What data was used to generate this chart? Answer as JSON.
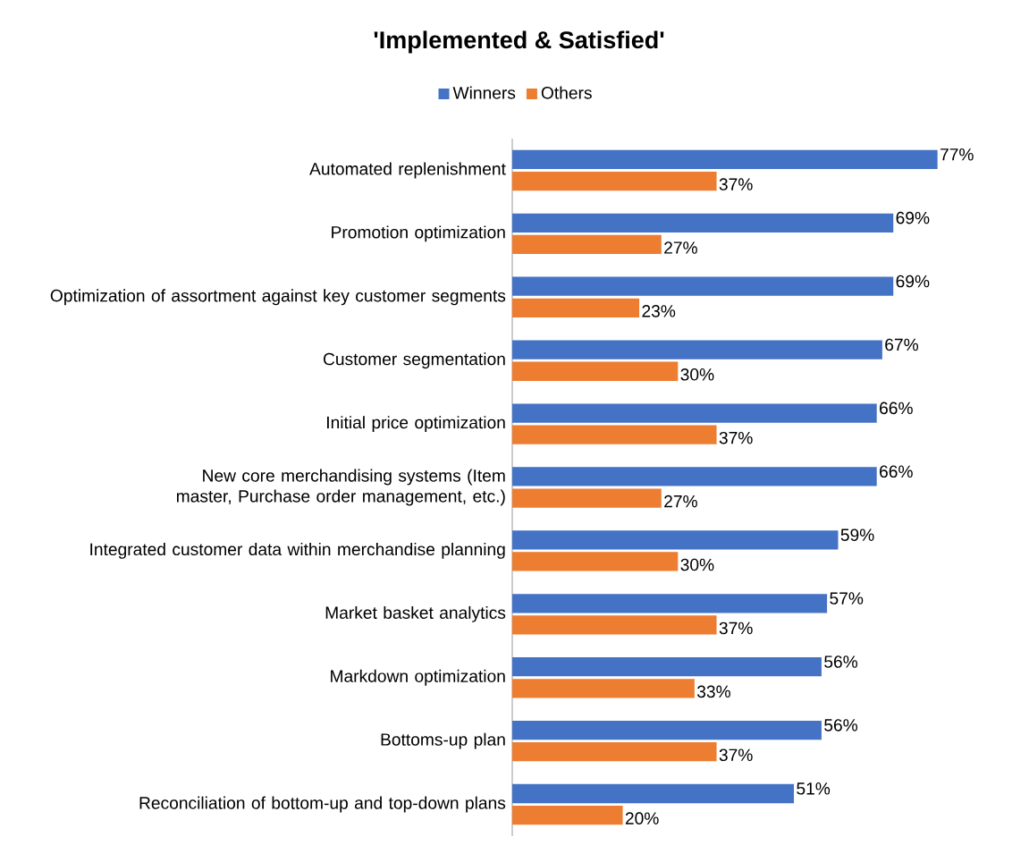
{
  "chart_data": {
    "type": "bar",
    "orientation": "horizontal",
    "title": "'Implemented & Satisfied'",
    "legend": "top",
    "categories": [
      "Automated replenishment",
      "Promotion optimization",
      "Optimization of assortment against key customer segments",
      "Customer segmentation",
      "Initial price optimization",
      "New core merchandising systems (Item master, Purchase order management, etc.)",
      "Integrated customer data within merchandise planning",
      "Market basket analytics",
      "Markdown optimization",
      "Bottoms-up plan",
      "Reconciliation of bottom-up and top-down plans"
    ],
    "series": [
      {
        "name": "Winners",
        "color": "#4472c4",
        "values": [
          77,
          69,
          69,
          67,
          66,
          66,
          59,
          57,
          56,
          56,
          51
        ],
        "value_labels": [
          "77%",
          "69%",
          "69%",
          "67%",
          "66%",
          "66%",
          "59%",
          "57%",
          "56%",
          "56%",
          "51%"
        ]
      },
      {
        "name": "Others",
        "color": "#ed7d31",
        "values": [
          37,
          27,
          23,
          30,
          37,
          27,
          30,
          37,
          33,
          37,
          20
        ],
        "value_labels": [
          "37%",
          "27%",
          "23%",
          "30%",
          "37%",
          "27%",
          "30%",
          "37%",
          "33%",
          "37%",
          "20%"
        ]
      }
    ]
  }
}
